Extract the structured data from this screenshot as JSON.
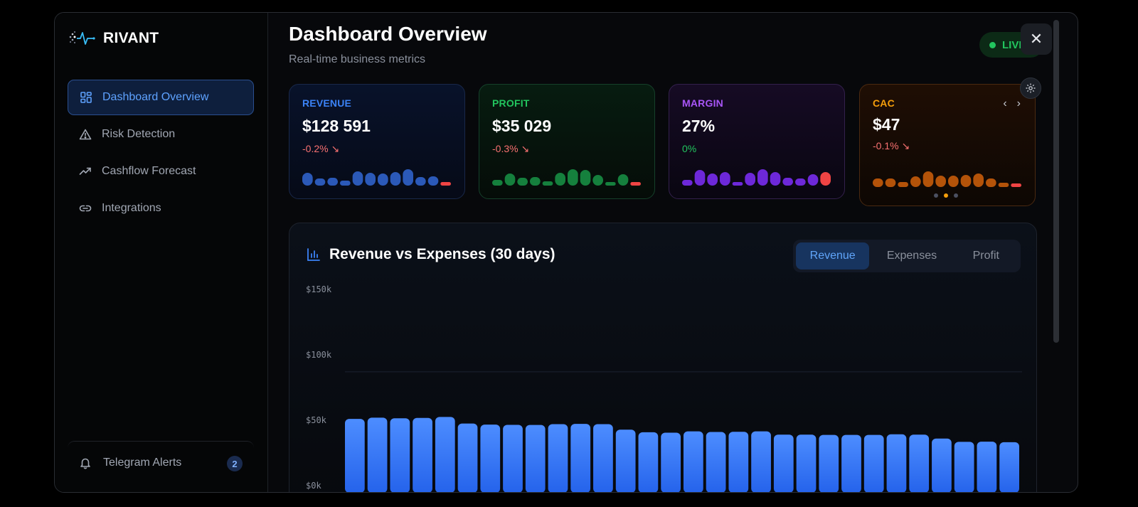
{
  "brand": {
    "name": "RIVANT"
  },
  "sidebar": {
    "items": [
      {
        "label": "Dashboard Overview",
        "icon": "grid-icon",
        "active": true
      },
      {
        "label": "Risk Detection",
        "icon": "warning-triangle-icon",
        "active": false
      },
      {
        "label": "Cashflow Forecast",
        "icon": "trending-up-icon",
        "active": false
      },
      {
        "label": "Integrations",
        "icon": "link-icon",
        "active": false
      }
    ],
    "footer": {
      "label": "Telegram Alerts",
      "icon": "bell-icon",
      "badge": "2"
    }
  },
  "header": {
    "title": "Dashboard Overview",
    "subtitle": "Real-time business metrics",
    "live_label": "LIVE",
    "close_label": "✕"
  },
  "cards": {
    "revenue": {
      "label": "REVENUE",
      "value": "$128 591",
      "change": "-0.2% ↘",
      "color": "#2b59b8",
      "bars": [
        0.9,
        0.5,
        0.55,
        0.35,
        1.0,
        0.9,
        0.85,
        0.95,
        1.15,
        0.6,
        0.65,
        0.2
      ]
    },
    "profit": {
      "label": "PROFIT",
      "value": "$35 029",
      "change": "-0.3% ↘",
      "color": "#15803d",
      "bars": [
        0.4,
        0.85,
        0.55,
        0.6,
        0.3,
        0.9,
        1.15,
        1.1,
        0.75,
        0.2,
        0.8,
        0.2
      ]
    },
    "margin": {
      "label": "MARGIN",
      "value": "27%",
      "change": "0%",
      "color": "#6d28d9",
      "bars": [
        0.4,
        1.1,
        0.85,
        0.95,
        0.25,
        0.9,
        1.15,
        0.95,
        0.55,
        0.5,
        0.8,
        0.95
      ]
    },
    "cac": {
      "label": "CAC",
      "value": "$47",
      "change": "-0.1% ↘",
      "color": "#b45309",
      "bars": [
        0.6,
        0.6,
        0.35,
        0.75,
        1.1,
        0.8,
        0.8,
        0.85,
        0.95,
        0.6,
        0.3,
        0.2
      ]
    }
  },
  "colors": {
    "revenue_label": "#3b82f6",
    "profit_label": "#22c55e",
    "margin_label": "#a855f7",
    "cac_label": "#f59e0b",
    "negative": "#f87171",
    "neutral_change": "#22c55e",
    "last_bar_alert": "#ef4444",
    "chart_bar_top": "#4d8dff",
    "chart_bar_bottom": "#2563eb"
  },
  "chart_panel": {
    "title": "Revenue vs Expenses (30 days)",
    "tabs": [
      {
        "label": "Revenue",
        "active": true
      },
      {
        "label": "Expenses",
        "active": false
      },
      {
        "label": "Profit",
        "active": false
      }
    ]
  },
  "chart_data": {
    "type": "bar",
    "series": [
      {
        "values": [
          51000,
          52000,
          51500,
          51800,
          52500,
          47500,
          46700,
          46500,
          46400,
          47000,
          47200,
          47000,
          42800,
          40800,
          40500,
          41500,
          41000,
          41200,
          41500,
          39000,
          39000,
          38800,
          38800,
          38800,
          39300,
          39000,
          36000,
          33500,
          33600,
          33200
        ]
      }
    ],
    "yticks": [
      "$150k",
      "$100k",
      "$50k",
      "$0k"
    ],
    "ylim": [
      0,
      150000
    ],
    "grid": true
  }
}
